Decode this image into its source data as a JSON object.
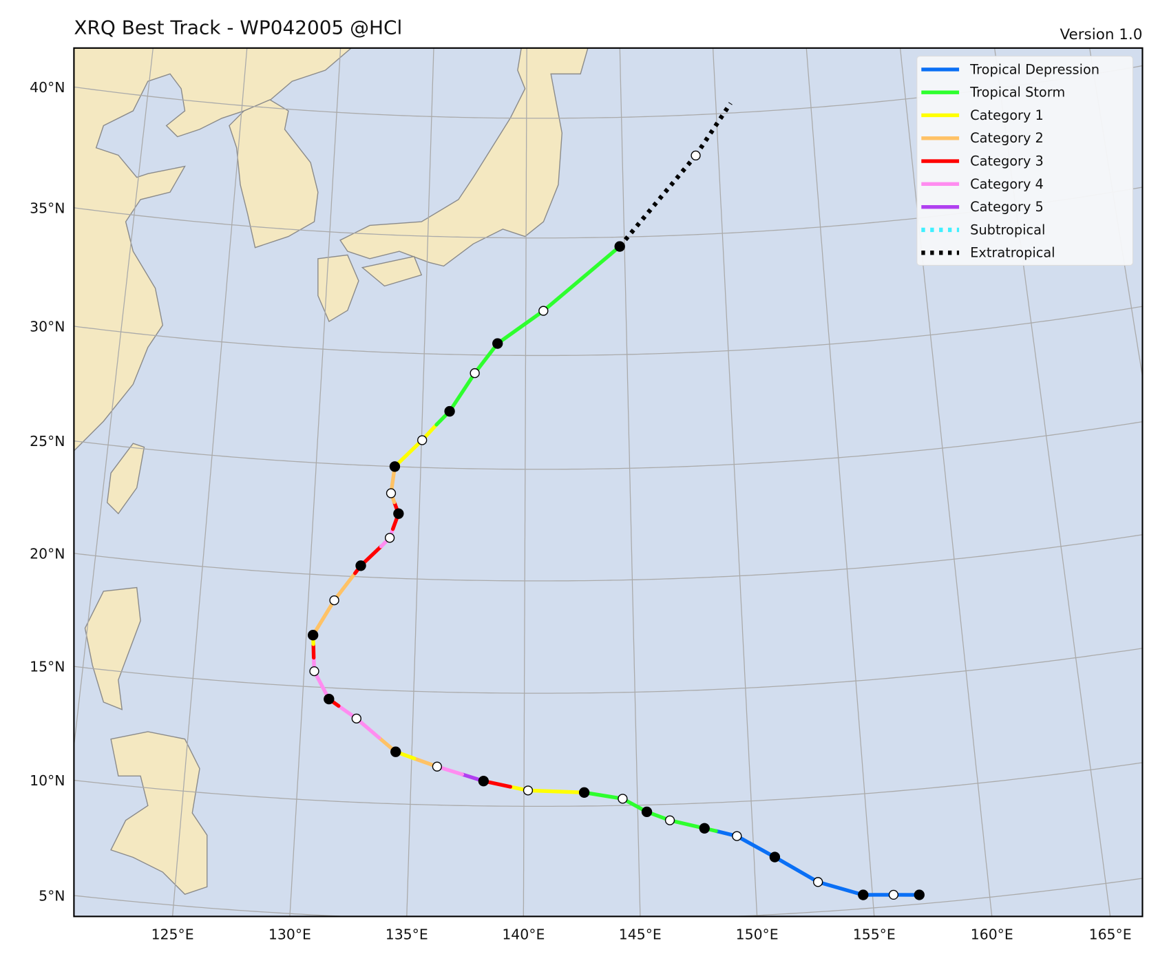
{
  "chart_data": {
    "type": "map-track",
    "title": "XRQ Best Track - WP042005  @HCl",
    "subtitle": "Version 1.0",
    "x_ticks": [
      {
        "value": 125,
        "label": "125°E"
      },
      {
        "value": 130,
        "label": "130°E"
      },
      {
        "value": 135,
        "label": "135°E"
      },
      {
        "value": 140,
        "label": "140°E"
      },
      {
        "value": 145,
        "label": "145°E"
      },
      {
        "value": 150,
        "label": "150°E"
      },
      {
        "value": 155,
        "label": "155°E"
      },
      {
        "value": 160,
        "label": "160°E"
      },
      {
        "value": 165,
        "label": "165°E"
      }
    ],
    "y_ticks": [
      {
        "value": 5,
        "label": "5°N"
      },
      {
        "value": 10,
        "label": "10°N"
      },
      {
        "value": 15,
        "label": "15°N"
      },
      {
        "value": 20,
        "label": "20°N"
      },
      {
        "value": 25,
        "label": "25°N"
      },
      {
        "value": 30,
        "label": "30°N"
      },
      {
        "value": 35,
        "label": "35°N"
      },
      {
        "value": 40,
        "label": "40°N"
      }
    ],
    "grid": true,
    "legend_position": "top-right",
    "legend": [
      {
        "key": "TD",
        "label": "Tropical Depression",
        "color": "#0a6ff5",
        "style": "solid"
      },
      {
        "key": "TS",
        "label": "Tropical Storm",
        "color": "#2eff2e",
        "style": "solid"
      },
      {
        "key": "C1",
        "label": "Category 1",
        "color": "#ffff00",
        "style": "solid"
      },
      {
        "key": "C2",
        "label": "Category 2",
        "color": "#ffc266",
        "style": "solid"
      },
      {
        "key": "C3",
        "label": "Category 3",
        "color": "#ff0000",
        "style": "solid"
      },
      {
        "key": "C4",
        "label": "Category 4",
        "color": "#ff8cf0",
        "style": "solid"
      },
      {
        "key": "C5",
        "label": "Category 5",
        "color": "#b040f0",
        "style": "solid"
      },
      {
        "key": "SS",
        "label": "Subtropical",
        "color": "#40f0ff",
        "style": "dotted"
      },
      {
        "key": "EX",
        "label": "Extratropical",
        "color": "#000000",
        "style": "dotted"
      }
    ],
    "track": [
      {
        "lon": 157.0,
        "lat": 5.4,
        "cat": "TD",
        "marker": "filled"
      },
      {
        "lon": 155.9,
        "lat": 5.5,
        "cat": "TD",
        "marker": "open"
      },
      {
        "lon": 154.6,
        "lat": 5.6,
        "cat": "TD",
        "marker": "filled"
      },
      {
        "lon": 152.7,
        "lat": 6.3,
        "cat": "TD",
        "marker": "open"
      },
      {
        "lon": 150.9,
        "lat": 7.5,
        "cat": "TD",
        "marker": "filled"
      },
      {
        "lon": 149.3,
        "lat": 8.5,
        "cat": "TD",
        "marker": "open"
      },
      {
        "lon": 148.4,
        "lat": 8.76,
        "cat": "TS",
        "marker": null
      },
      {
        "lon": 147.9,
        "lat": 8.9,
        "cat": "TS",
        "marker": "filled"
      },
      {
        "lon": 146.4,
        "lat": 9.3,
        "cat": "TS",
        "marker": "open"
      },
      {
        "lon": 145.4,
        "lat": 9.7,
        "cat": "TS",
        "marker": "filled"
      },
      {
        "lon": 144.35,
        "lat": 10.3,
        "cat": "TS",
        "marker": "open"
      },
      {
        "lon": 142.66,
        "lat": 10.6,
        "cat": "C1",
        "marker": "filled"
      },
      {
        "lon": 140.18,
        "lat": 10.7,
        "cat": "C1",
        "marker": "open"
      },
      {
        "lon": 139.4,
        "lat": 10.86,
        "cat": "C3",
        "marker": null
      },
      {
        "lon": 138.21,
        "lat": 11.1,
        "cat": "C5",
        "marker": "filled"
      },
      {
        "lon": 137.26,
        "lat": 11.38,
        "cat": "C4",
        "marker": null
      },
      {
        "lon": 136.14,
        "lat": 11.7,
        "cat": "C2",
        "marker": "open"
      },
      {
        "lon": 135.12,
        "lat": 12.03,
        "cat": "C1",
        "marker": null
      },
      {
        "lon": 134.28,
        "lat": 12.3,
        "cat": "C2",
        "marker": "filled"
      },
      {
        "lon": 133.52,
        "lat": 12.89,
        "cat": "C4",
        "marker": null
      },
      {
        "lon": 132.47,
        "lat": 13.7,
        "cat": "C4",
        "marker": "open"
      },
      {
        "lon": 131.64,
        "lat": 14.22,
        "cat": "C3",
        "marker": null
      },
      {
        "lon": 131.19,
        "lat": 14.5,
        "cat": "C4",
        "marker": "filled"
      },
      {
        "lon": 130.46,
        "lat": 15.7,
        "cat": "C4",
        "marker": "open"
      },
      {
        "lon": 130.4,
        "lat": 16.3,
        "cat": "C3",
        "marker": null
      },
      {
        "lon": 130.35,
        "lat": 16.9,
        "cat": "C1",
        "marker": null
      },
      {
        "lon": 130.31,
        "lat": 17.3,
        "cat": "C2",
        "marker": "filled"
      },
      {
        "lon": 131.2,
        "lat": 18.9,
        "cat": "C2",
        "marker": "open"
      },
      {
        "lon": 132.1,
        "lat": 20.15,
        "cat": "C3",
        "marker": null
      },
      {
        "lon": 132.35,
        "lat": 20.5,
        "cat": "C3",
        "marker": "filled"
      },
      {
        "lon": 133.26,
        "lat": 21.4,
        "cat": "C4",
        "marker": null
      },
      {
        "lon": 133.65,
        "lat": 21.8,
        "cat": "C4",
        "marker": "open"
      },
      {
        "lon": 133.78,
        "lat": 22.2,
        "cat": "C3",
        "marker": null
      },
      {
        "lon": 134.02,
        "lat": 22.9,
        "cat": "C3",
        "marker": "filled"
      },
      {
        "lon": 133.8,
        "lat": 23.4,
        "cat": "C2",
        "marker": null
      },
      {
        "lon": 133.63,
        "lat": 23.8,
        "cat": "C2",
        "marker": "open"
      },
      {
        "lon": 133.76,
        "lat": 25.0,
        "cat": "C1",
        "marker": "filled"
      },
      {
        "lon": 135.03,
        "lat": 26.2,
        "cat": "C1",
        "marker": "open"
      },
      {
        "lon": 135.7,
        "lat": 26.9,
        "cat": "TS",
        "marker": null
      },
      {
        "lon": 136.32,
        "lat": 27.5,
        "cat": "TS",
        "marker": "filled"
      },
      {
        "lon": 137.51,
        "lat": 29.2,
        "cat": "TS",
        "marker": "open"
      },
      {
        "lon": 138.61,
        "lat": 30.5,
        "cat": "TS",
        "marker": "filled"
      },
      {
        "lon": 140.88,
        "lat": 31.9,
        "cat": "TS",
        "marker": "open"
      },
      {
        "lon": 144.76,
        "lat": 34.6,
        "cat": "EX",
        "marker": "filled"
      },
      {
        "lon": 148.82,
        "lat": 38.3,
        "cat": "EX",
        "marker": "open"
      },
      {
        "lon": 150.78,
        "lat": 40.4,
        "cat": "EX",
        "marker": null
      }
    ]
  }
}
